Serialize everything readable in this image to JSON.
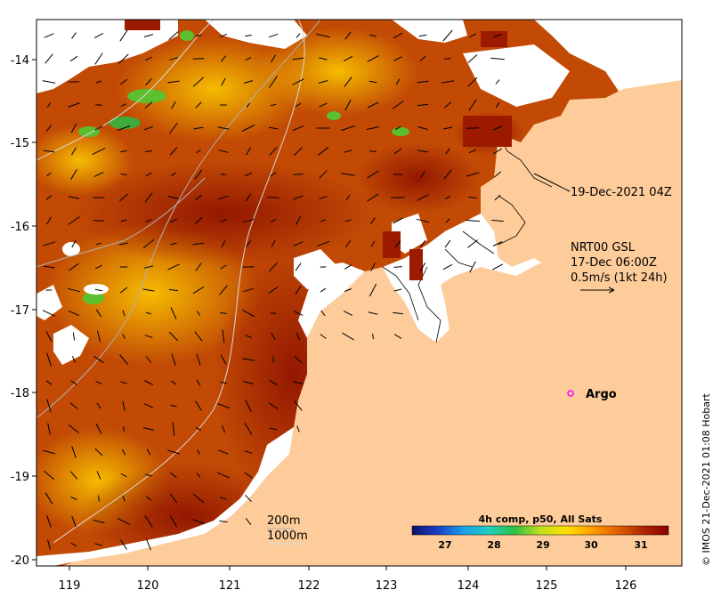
{
  "axes": {
    "x_ticks": [
      "119",
      "120",
      "121",
      "122",
      "123",
      "124",
      "125",
      "126"
    ],
    "y_ticks": [
      "-14",
      "-15",
      "-16",
      "-17",
      "-18",
      "-19",
      "-20"
    ]
  },
  "annotations": {
    "track_time": "19-Dec-2021 04Z",
    "current_product": "NRT00 GSL",
    "current_time": "17-Dec 06:00Z",
    "current_scale": "0.5m/s (1kt 24h)"
  },
  "argo": {
    "label": "Argo",
    "color": "#ff00ff"
  },
  "isobaths": {
    "label_200": "200m",
    "label_1000": "1000m"
  },
  "colorbar": {
    "title": "4h comp, p50, All Sats",
    "ticks": [
      "27",
      "28",
      "29",
      "30",
      "31"
    ],
    "colors": [
      "#10106a",
      "#1a40c8",
      "#1a9ee8",
      "#20d0c0",
      "#30c040",
      "#c0e020",
      "#ffe000",
      "#ffa000",
      "#e06000",
      "#b02800",
      "#8b0000"
    ]
  },
  "credit": "© IMOS 21-Dec-2021 01:08 Hobart",
  "colors": {
    "land": "#fdcc9a",
    "no_data": "#ffffff",
    "sst_warm": "#b82c00",
    "sst_mid": "#e07a10"
  }
}
